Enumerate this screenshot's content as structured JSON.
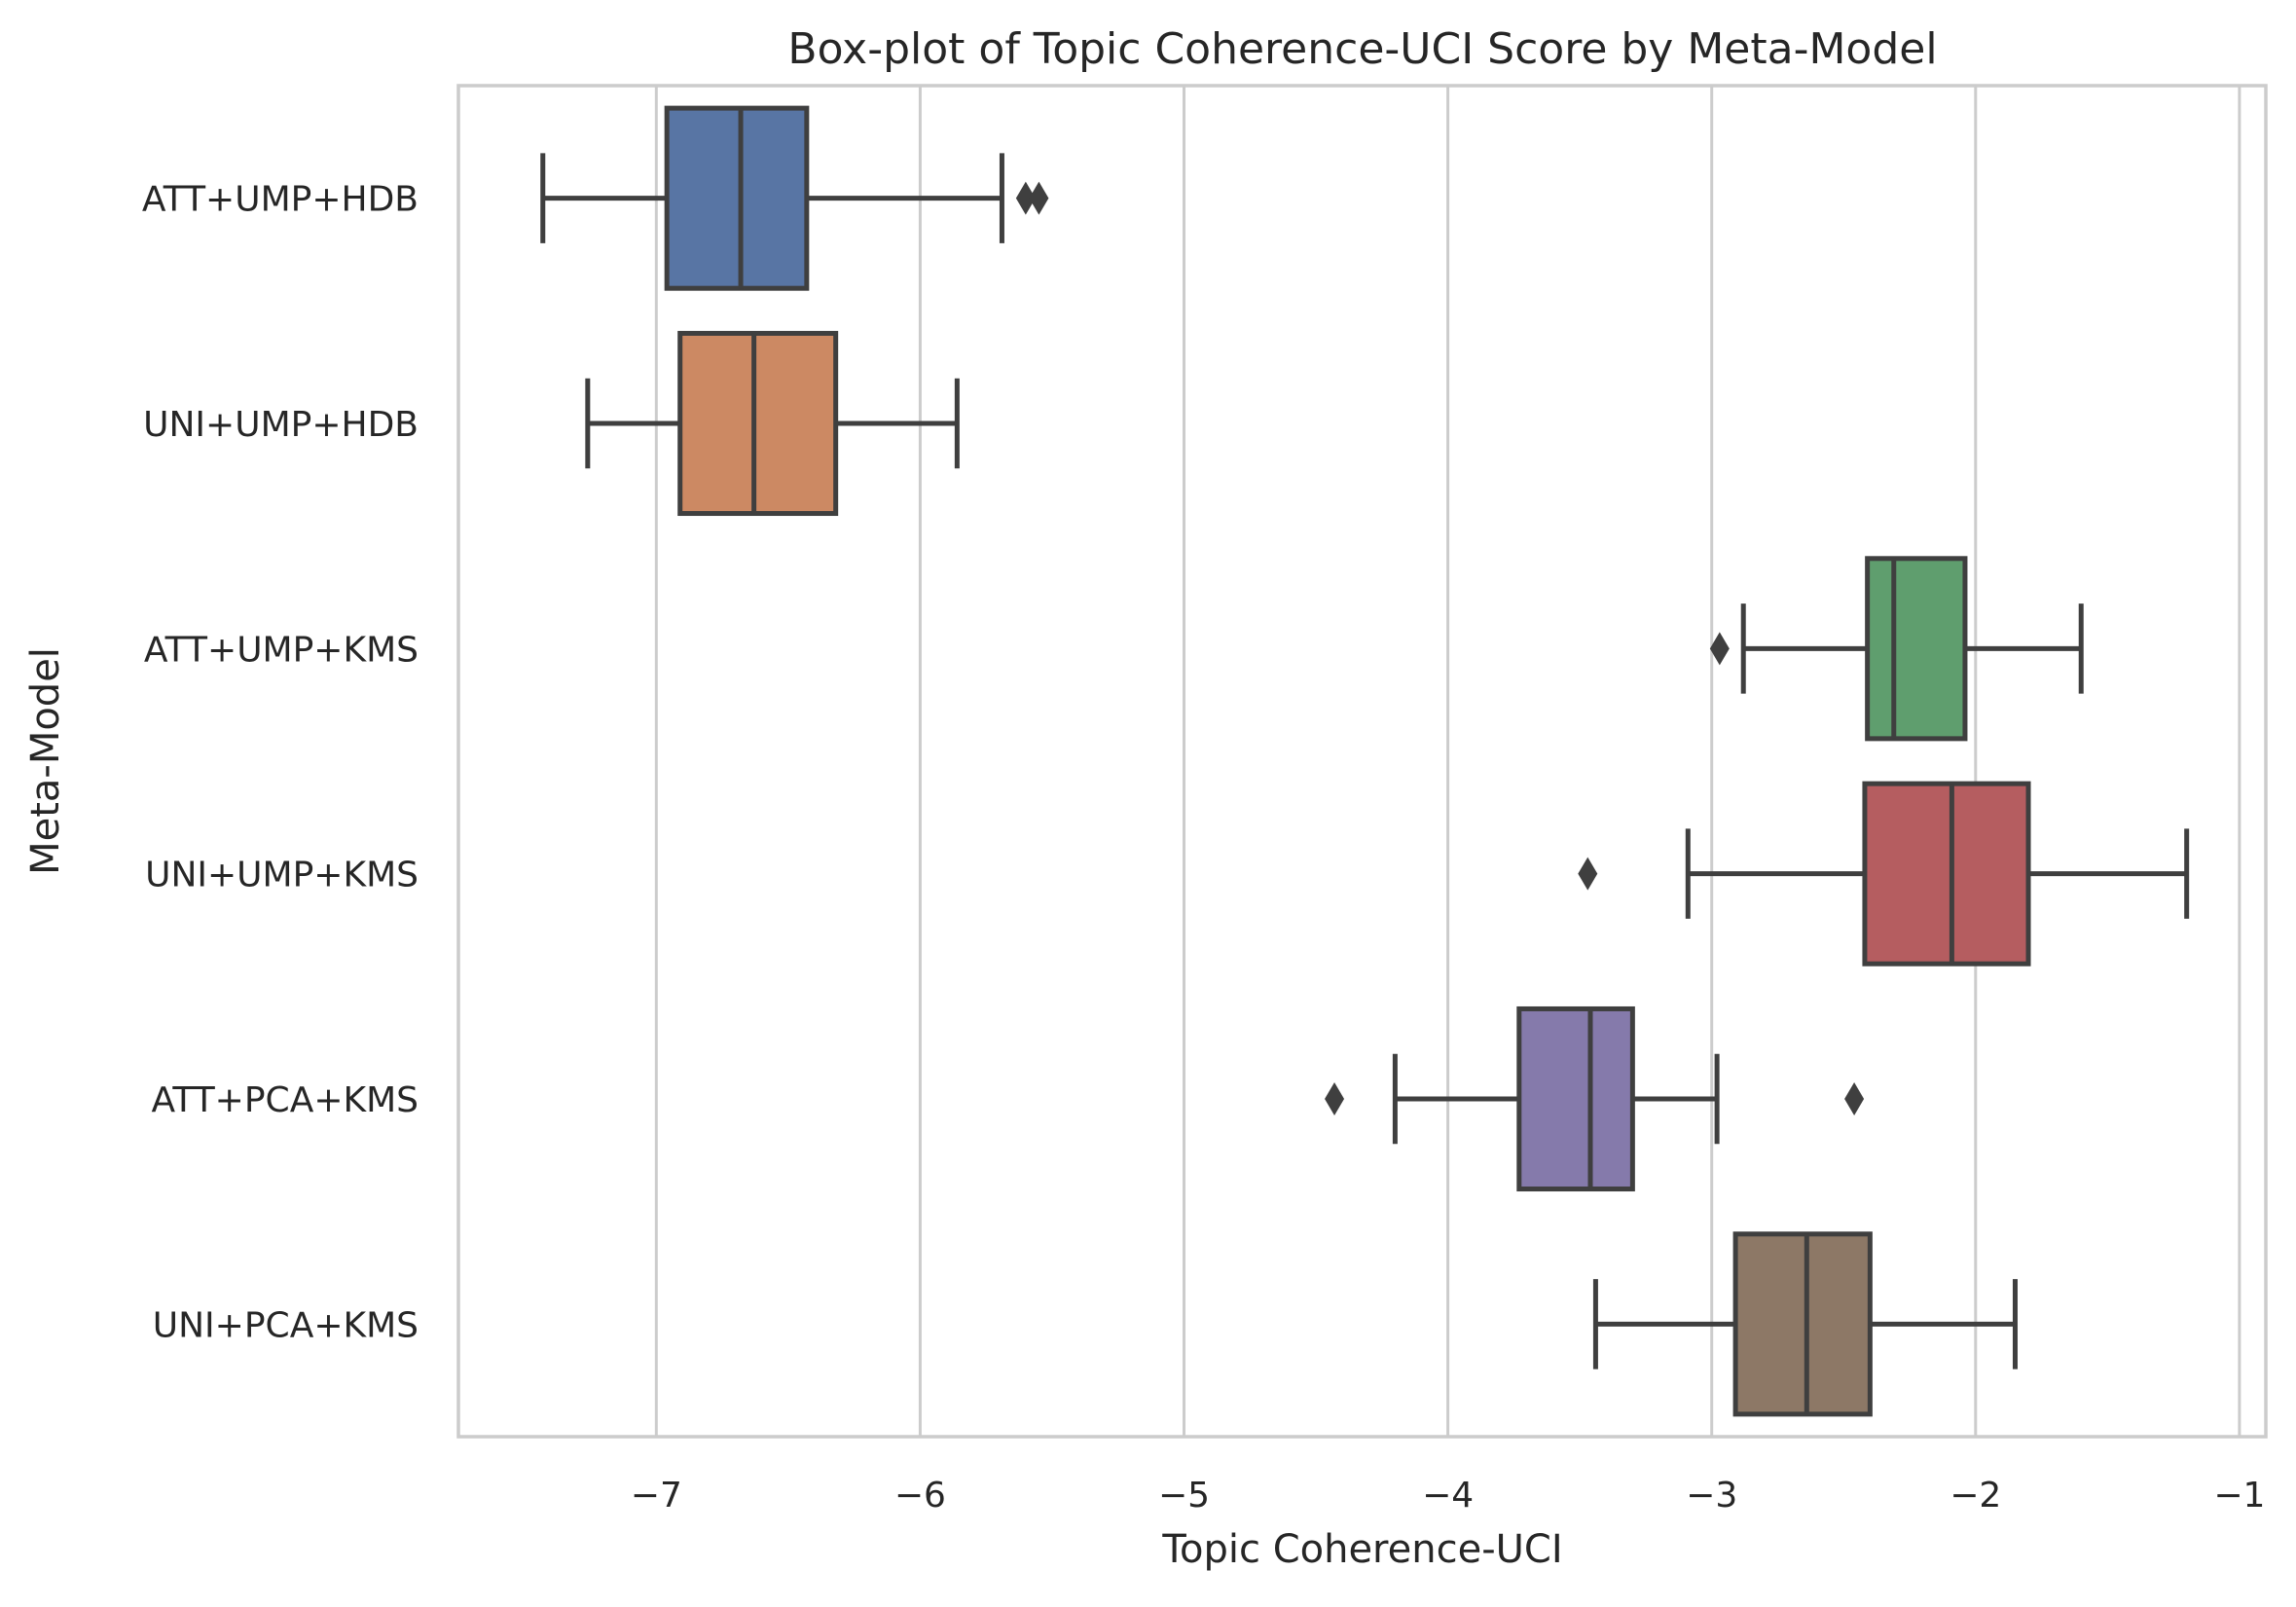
{
  "chart_data": {
    "type": "box",
    "orientation": "horizontal",
    "title": "Box-plot of Topic Coherence-UCI Score by Meta-Model",
    "xlabel": "Topic Coherence-UCI",
    "ylabel": "Meta-Model",
    "xlim": [
      -7.75,
      -0.9
    ],
    "xticks": [
      -7,
      -6,
      -5,
      -4,
      -3,
      -2,
      -1
    ],
    "xtick_labels": [
      "−7",
      "−6",
      "−5",
      "−4",
      "−3",
      "−2",
      "−1"
    ],
    "grid": "vertical",
    "series": [
      {
        "name": "ATT+UMP+HDB",
        "color": "#5875a4",
        "whisker_low": -7.43,
        "q1": -6.96,
        "median": -6.68,
        "q3": -6.43,
        "whisker_high": -5.69,
        "outliers": [
          -5.6,
          -5.55
        ]
      },
      {
        "name": "UNI+UMP+HDB",
        "color": "#cc8963",
        "whisker_low": -7.26,
        "q1": -6.91,
        "median": -6.63,
        "q3": -6.32,
        "whisker_high": -5.86,
        "outliers": []
      },
      {
        "name": "ATT+UMP+KMS",
        "color": "#5f9e6e",
        "whisker_low": -2.88,
        "q1": -2.41,
        "median": -2.31,
        "q3": -2.04,
        "whisker_high": -1.6,
        "outliers": [
          -2.97
        ]
      },
      {
        "name": "UNI+UMP+KMS",
        "color": "#b55d60",
        "whisker_low": -3.09,
        "q1": -2.42,
        "median": -2.09,
        "q3": -1.8,
        "whisker_high": -1.2,
        "outliers": [
          -3.47
        ]
      },
      {
        "name": "ATT+PCA+KMS",
        "color": "#857aab",
        "whisker_low": -4.2,
        "q1": -3.73,
        "median": -3.46,
        "q3": -3.3,
        "whisker_high": -2.98,
        "outliers": [
          -4.43,
          -2.46
        ]
      },
      {
        "name": "UNI+PCA+KMS",
        "color": "#8d7866",
        "whisker_low": -3.44,
        "q1": -2.91,
        "median": -2.64,
        "q3": -2.4,
        "whisker_high": -1.85,
        "outliers": []
      }
    ]
  }
}
